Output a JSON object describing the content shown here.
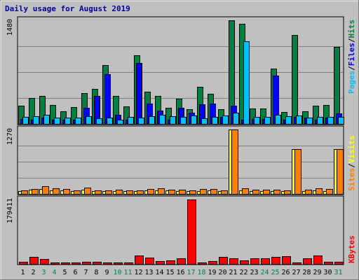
{
  "chart_data": {
    "type": "bar",
    "title": "Daily usage for August 2019",
    "days": [
      "1",
      "2",
      "3",
      "4",
      "5",
      "6",
      "7",
      "8",
      "9",
      "10",
      "11",
      "12",
      "13",
      "14",
      "15",
      "16",
      "17",
      "18",
      "19",
      "20",
      "21",
      "22",
      "23",
      "24",
      "25",
      "26",
      "27",
      "28",
      "29",
      "30",
      "31"
    ],
    "weekend_days": [
      "3",
      "4",
      "10",
      "11",
      "17",
      "18",
      "24",
      "25",
      "31"
    ],
    "panels": [
      {
        "id": "hits-files-pages",
        "ymax": 1480,
        "ymax_label": "1480",
        "grid": true,
        "series": [
          {
            "name": "Hits",
            "color": "#008040",
            "values": [
              260,
              370,
              400,
              270,
              180,
              240,
              440,
              500,
              840,
              400,
              250,
              980,
              460,
              400,
              230,
              360,
              210,
              530,
              430,
              210,
              1480,
              1430,
              220,
              220,
              790,
              170,
              1270,
              180,
              260,
              270,
              1100
            ]
          },
          {
            "name": "Files",
            "color": "#0000ff",
            "values": [
              70,
              60,
              90,
              60,
              60,
              60,
              230,
              400,
              710,
              130,
              60,
              870,
              290,
              190,
              60,
              230,
              160,
              280,
              290,
              100,
              260,
              60,
              70,
              70,
              690,
              60,
              100,
              90,
              60,
              90,
              150
            ]
          },
          {
            "name": "Pages",
            "color": "#00c0ff",
            "values": [
              100,
              110,
              130,
              90,
              90,
              90,
              110,
              80,
              90,
              60,
              100,
              90,
              110,
              130,
              110,
              100,
              120,
              80,
              100,
              120,
              160,
              1180,
              100,
              100,
              130,
              110,
              120,
              90,
              100,
              100,
              100
            ]
          }
        ]
      },
      {
        "id": "visits-sites",
        "ymax": 1270,
        "ymax_label": "1270",
        "grid": true,
        "series": [
          {
            "name": "Visits",
            "color": "#ffff00",
            "values": [
              55,
              80,
              95,
              75,
              65,
              60,
              80,
              60,
              50,
              50,
              55,
              60,
              75,
              70,
              65,
              55,
              55,
              60,
              70,
              50,
              1270,
              75,
              60,
              55,
              55,
              55,
              880,
              60,
              70,
              60,
              880
            ]
          },
          {
            "name": "Sites",
            "color": "#ff8000",
            "values": [
              70,
              100,
              145,
              110,
              100,
              70,
              125,
              70,
              70,
              80,
              75,
              75,
              100,
              105,
              85,
              80,
              75,
              95,
              90,
              70,
              1270,
              115,
              85,
              80,
              80,
              75,
              880,
              80,
              110,
              100,
              880
            ]
          }
        ]
      },
      {
        "id": "kbytes",
        "ymax": 179411,
        "ymax_label": "179411",
        "grid": false,
        "series": [
          {
            "name": "KBytes",
            "color": "#ff0000",
            "values": [
              6000,
              20000,
              14000,
              2500,
              3000,
              4000,
              5000,
              6000,
              3500,
              3000,
              3500,
              24000,
              17000,
              8000,
              9500,
              15000,
              179411,
              3000,
              8000,
              20000,
              15000,
              10000,
              16000,
              16000,
              20000,
              22000,
              3000,
              16000,
              24000,
              5000,
              5000
            ]
          }
        ]
      }
    ],
    "legend_right": {
      "top": [
        {
          "text": "Pages",
          "color": "#00c0ff"
        },
        {
          "text": "/",
          "color": "#000000"
        },
        {
          "text": "Files",
          "color": "#0000ff"
        },
        {
          "text": "/",
          "color": "#000000"
        },
        {
          "text": "Hits",
          "color": "#008040"
        }
      ],
      "middle": [
        {
          "text": "Sites",
          "color": "#ff8000"
        },
        {
          "text": "/",
          "color": "#000000"
        },
        {
          "text": "Visits",
          "color": "#ffff00"
        }
      ],
      "bottom": [
        {
          "text": "KBytes",
          "color": "#ff0000"
        }
      ]
    },
    "colors": {
      "background": "#c0c0c0",
      "border": "#000000",
      "grid": "#808080",
      "title": "#0000a0",
      "weekday_label": "#000000",
      "weekend_label": "#00805c"
    }
  }
}
